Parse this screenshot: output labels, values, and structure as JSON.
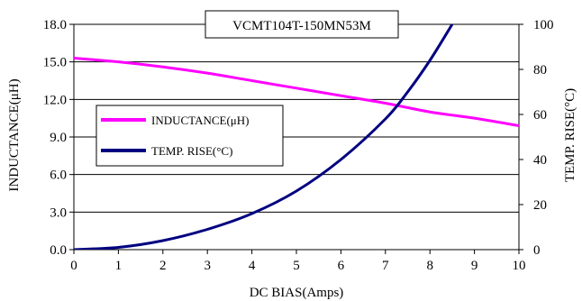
{
  "chart_data": {
    "type": "line",
    "title": "VCMT104T-150MN53M",
    "xlabel": "DC BIAS(Amps)",
    "ylabel_left": "INDUCTANCE(μH)",
    "ylabel_right": "TEMP. RISE(°C)",
    "xlim": [
      0,
      10
    ],
    "ylim_left": [
      0,
      18
    ],
    "ylim_right": [
      0,
      100
    ],
    "x_ticks": [
      "0",
      "1",
      "2",
      "3",
      "4",
      "5",
      "6",
      "7",
      "8",
      "9",
      "10"
    ],
    "y_left_ticks": [
      "0.0",
      "3.0",
      "6.0",
      "9.0",
      "12.0",
      "15.0",
      "18.0"
    ],
    "y_right_ticks": [
      "0",
      "20",
      "40",
      "60",
      "80",
      "100"
    ],
    "grid": "horizontal",
    "legend_placement": "middle-left",
    "series": [
      {
        "name": "INDUCTANCE(μH)",
        "axis": "left",
        "color": "#ff00ff",
        "x": [
          0,
          1,
          2,
          3,
          4,
          5,
          6,
          7,
          8,
          9,
          10
        ],
        "y": [
          15.3,
          15.0,
          14.6,
          14.1,
          13.5,
          12.9,
          12.3,
          11.7,
          11.0,
          10.5,
          9.9
        ]
      },
      {
        "name": "TEMP. RISE(°C)",
        "axis": "right",
        "color": "#000080",
        "x": [
          0,
          1,
          2,
          3,
          4,
          5,
          6,
          7,
          7.5,
          8,
          8.5
        ],
        "y": [
          0,
          1,
          4,
          9,
          16,
          26,
          40,
          58,
          70,
          84,
          100
        ]
      }
    ]
  }
}
